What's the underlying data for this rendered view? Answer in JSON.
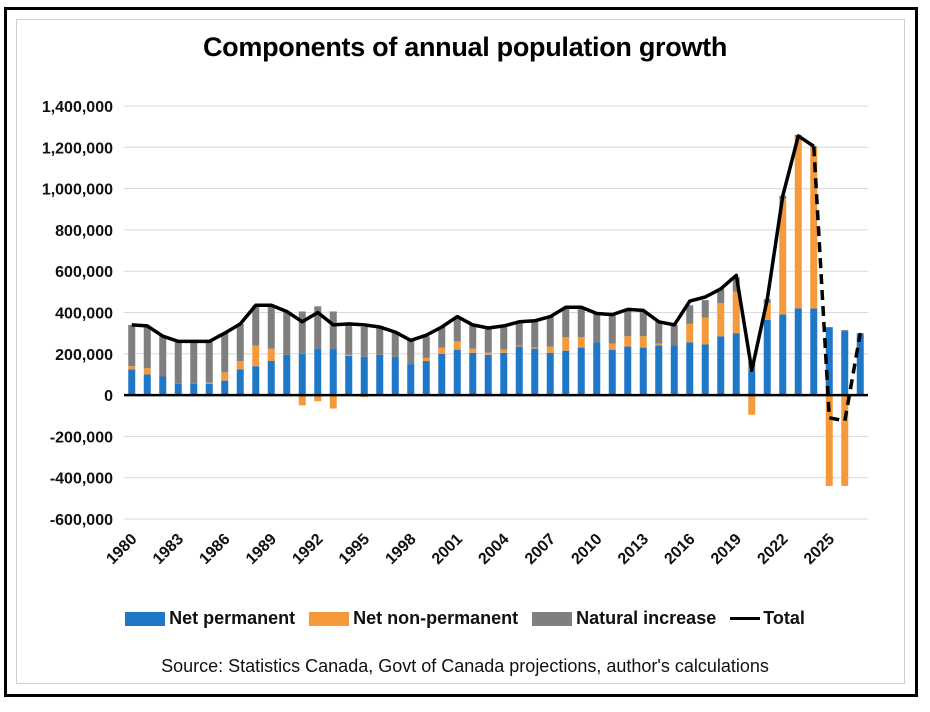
{
  "chart_data": {
    "type": "bar",
    "subtype": "stacked bar with line overlay",
    "title": "Components of annual population growth",
    "source": "Source: Statistics Canada, Govt of Canada projections, author's calculations",
    "xlabel": "",
    "ylabel": "",
    "ylim": [
      -600000,
      1400000
    ],
    "yticks": [
      1400000,
      1200000,
      1000000,
      800000,
      600000,
      400000,
      200000,
      0,
      -200000,
      -400000,
      -600000
    ],
    "ytick_labels": [
      "1,400,000",
      "1,200,000",
      "1,000,000",
      "800,000",
      "600,000",
      "400,000",
      "200,000",
      "0",
      "-200,000",
      "-400,000",
      "-600,000"
    ],
    "xtick_labels": [
      "1980",
      "1983",
      "1986",
      "1989",
      "1992",
      "1995",
      "1998",
      "2001",
      "2004",
      "2007",
      "2010",
      "2013",
      "2016",
      "2019",
      "2022",
      "2025"
    ],
    "grid": true,
    "legend_position": "bottom",
    "categories": [
      1980,
      1981,
      1982,
      1983,
      1984,
      1985,
      1986,
      1987,
      1988,
      1989,
      1990,
      1991,
      1992,
      1993,
      1994,
      1995,
      1996,
      1997,
      1998,
      1999,
      2000,
      2001,
      2002,
      2003,
      2004,
      2005,
      2006,
      2007,
      2008,
      2009,
      2010,
      2011,
      2012,
      2013,
      2014,
      2015,
      2016,
      2017,
      2018,
      2019,
      2020,
      2021,
      2022,
      2023,
      2024,
      2025,
      2026,
      2027
    ],
    "series": [
      {
        "name": "Net permanent",
        "color": "#1f77c8",
        "values": [
          125000,
          100000,
          90000,
          55000,
          55000,
          55000,
          70000,
          125000,
          140000,
          165000,
          195000,
          200000,
          225000,
          225000,
          190000,
          185000,
          195000,
          185000,
          150000,
          165000,
          200000,
          220000,
          205000,
          195000,
          205000,
          235000,
          225000,
          205000,
          215000,
          230000,
          255000,
          220000,
          235000,
          230000,
          240000,
          240000,
          255000,
          245000,
          285000,
          300000,
          120000,
          365000,
          390000,
          420000,
          420000,
          325000,
          310000,
          295000
        ]
      },
      {
        "name": "Net non-permanent",
        "color": "#f59a3c",
        "values": [
          15000,
          30000,
          0,
          0,
          0,
          5000,
          40000,
          40000,
          100000,
          60000,
          0,
          -50000,
          -30000,
          -65000,
          5000,
          -10000,
          0,
          0,
          0,
          15000,
          30000,
          40000,
          20000,
          10000,
          15000,
          5000,
          5000,
          30000,
          65000,
          50000,
          0,
          30000,
          50000,
          55000,
          10000,
          0,
          90000,
          130000,
          160000,
          200000,
          -95000,
          80000,
          560000,
          830000,
          780000,
          -440000,
          -440000,
          0
        ]
      },
      {
        "name": "Natural increase",
        "color": "#7f7f7f",
        "values": [
          200000,
          205000,
          195000,
          205000,
          205000,
          200000,
          190000,
          180000,
          195000,
          210000,
          210000,
          205000,
          205000,
          180000,
          150000,
          145000,
          135000,
          120000,
          115000,
          105000,
          100000,
          110000,
          115000,
          120000,
          115000,
          115000,
          130000,
          145000,
          145000,
          145000,
          140000,
          140000,
          130000,
          125000,
          105000,
          100000,
          90000,
          85000,
          70000,
          70000,
          45000,
          20000,
          15000,
          10000,
          5000,
          5000,
          5000,
          5000
        ]
      },
      {
        "name": "Total",
        "color": "#000000",
        "type": "line",
        "values": [
          340000,
          335000,
          285000,
          260000,
          260000,
          260000,
          300000,
          345000,
          435000,
          435000,
          405000,
          355000,
          400000,
          340000,
          345000,
          340000,
          330000,
          305000,
          265000,
          290000,
          330000,
          380000,
          340000,
          325000,
          335000,
          355000,
          360000,
          380000,
          425000,
          425000,
          395000,
          390000,
          415000,
          410000,
          355000,
          340000,
          455000,
          475000,
          515000,
          580000,
          120000,
          465000,
          965000,
          1255000,
          1205000,
          -110000,
          -125000,
          300000
        ],
        "solid_until": 2024,
        "dashed_from": 2024
      }
    ]
  },
  "legend": {
    "items": [
      "Net permanent",
      "Net non-permanent",
      "Natural increase",
      "Total"
    ]
  }
}
